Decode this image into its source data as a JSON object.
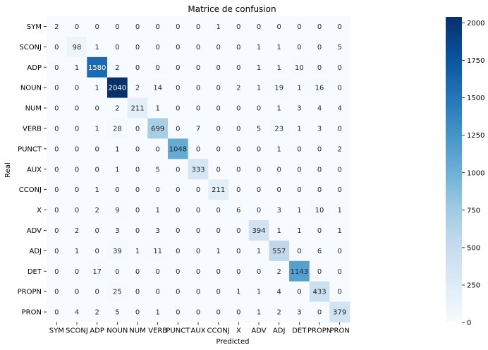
{
  "chart_data": {
    "type": "heatmap",
    "title": "Matrice de confusion",
    "xlabel": "Predicted",
    "ylabel": "Real",
    "labels": [
      "SYM",
      "SCONJ",
      "ADP",
      "NOUN",
      "NUM",
      "VERB",
      "PUNCT",
      "AUX",
      "CCONJ",
      "X",
      "ADV",
      "ADJ",
      "DET",
      "PROPN",
      "PRON"
    ],
    "matrix": [
      [
        2,
        0,
        0,
        0,
        0,
        0,
        0,
        0,
        1,
        0,
        0,
        0,
        0,
        0,
        0
      ],
      [
        0,
        98,
        1,
        0,
        0,
        0,
        0,
        0,
        0,
        0,
        1,
        1,
        0,
        0,
        5
      ],
      [
        0,
        1,
        1580,
        2,
        0,
        0,
        0,
        0,
        0,
        0,
        1,
        1,
        10,
        0,
        0
      ],
      [
        0,
        0,
        1,
        2040,
        2,
        14,
        0,
        0,
        0,
        2,
        1,
        19,
        1,
        16,
        0
      ],
      [
        0,
        0,
        0,
        2,
        211,
        1,
        0,
        0,
        0,
        0,
        0,
        1,
        3,
        4,
        4
      ],
      [
        0,
        0,
        1,
        28,
        0,
        699,
        0,
        7,
        0,
        0,
        5,
        23,
        1,
        3,
        0
      ],
      [
        0,
        0,
        0,
        1,
        0,
        0,
        1048,
        0,
        0,
        0,
        0,
        1,
        0,
        0,
        2
      ],
      [
        0,
        0,
        0,
        1,
        0,
        5,
        0,
        333,
        0,
        0,
        0,
        0,
        0,
        0,
        0
      ],
      [
        0,
        0,
        1,
        0,
        0,
        0,
        0,
        0,
        211,
        0,
        0,
        0,
        0,
        0,
        0
      ],
      [
        0,
        0,
        2,
        9,
        0,
        1,
        0,
        0,
        0,
        6,
        0,
        3,
        1,
        10,
        1
      ],
      [
        0,
        2,
        0,
        3,
        0,
        3,
        0,
        0,
        0,
        0,
        394,
        1,
        1,
        0,
        1
      ],
      [
        0,
        1,
        0,
        39,
        1,
        11,
        0,
        0,
        1,
        0,
        1,
        557,
        0,
        6,
        0
      ],
      [
        0,
        0,
        17,
        0,
        0,
        0,
        0,
        0,
        0,
        0,
        0,
        2,
        1143,
        0,
        0
      ],
      [
        0,
        0,
        0,
        25,
        0,
        0,
        0,
        0,
        0,
        1,
        1,
        4,
        0,
        433,
        0
      ],
      [
        0,
        4,
        2,
        5,
        0,
        1,
        0,
        0,
        0,
        0,
        1,
        2,
        3,
        0,
        379
      ]
    ],
    "colorscale": "Blues",
    "vmin": 0,
    "vmax": 2040,
    "colorbar_ticks": [
      0,
      250,
      500,
      750,
      1000,
      1250,
      1500,
      1750,
      2000
    ],
    "grid": false,
    "legend": "colorbar-right"
  }
}
